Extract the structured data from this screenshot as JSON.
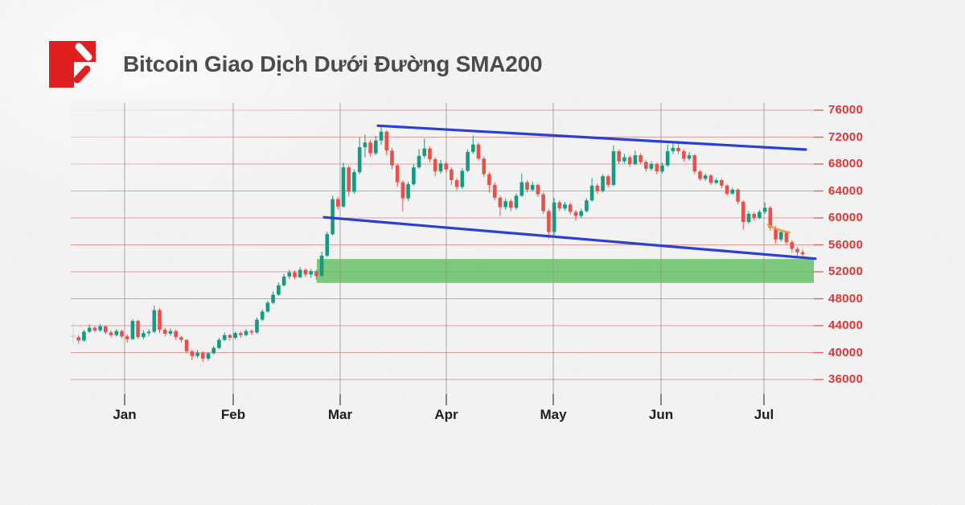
{
  "header": {
    "title": "Bitcoin Giao Dịch Dưới Đường SMA200"
  },
  "colors": {
    "background": "#f2f2f3",
    "title_text": "#4b4b4b",
    "logo_red": "#e02020",
    "candle_up": "#129b81",
    "candle_down": "#ec4f4a",
    "candle_muted": "#b9c0c5",
    "grid_red": "#d4645c",
    "month_line_gray": "#8f8f8f",
    "trendline_blue": "#2b3fd4",
    "support_zone_green": "#5fbe5d",
    "sma_orange": "#f0a03c",
    "y_label_red": "#e23434",
    "x_label_dark": "#1d1d1d"
  },
  "chart_data": {
    "type": "candlestick",
    "title": "Bitcoin Giao Dịch Dưới Đường SMA200",
    "xlabel": "",
    "ylabel": "",
    "grid": true,
    "legend_position": "none",
    "ylim": [
      36000,
      76000
    ],
    "y_ticks": [
      {
        "label": "76000",
        "value": 76000
      },
      {
        "label": "72000",
        "value": 72000
      },
      {
        "label": "68000",
        "value": 68000
      },
      {
        "label": "64000",
        "value": 64000
      },
      {
        "label": "60000",
        "value": 60000
      },
      {
        "label": "56000",
        "value": 56000
      },
      {
        "label": "52000",
        "value": 52000
      },
      {
        "label": "48000",
        "value": 48000
      },
      {
        "label": "44000",
        "value": 44000
      },
      {
        "label": "40000",
        "value": 40000
      },
      {
        "label": "36000",
        "value": 36000
      }
    ],
    "x_ticks": [
      {
        "label": "Jan",
        "x": 155
      },
      {
        "label": "Feb",
        "x": 290
      },
      {
        "label": "Mar",
        "x": 423
      },
      {
        "label": "Apr",
        "x": 555
      },
      {
        "label": "May",
        "x": 688
      },
      {
        "label": "Jun",
        "x": 822
      },
      {
        "label": "Jul",
        "x": 950
      }
    ],
    "candles_ohlc": [
      [
        42600,
        44400,
        41400,
        42300
      ],
      [
        42300,
        42600,
        41300,
        41800
      ],
      [
        41800,
        43400,
        41600,
        43100
      ],
      [
        43100,
        44200,
        42900,
        43700
      ],
      [
        43700,
        43900,
        43000,
        43300
      ],
      [
        43300,
        44300,
        43100,
        43900
      ],
      [
        43900,
        44000,
        42700,
        43000
      ],
      [
        43000,
        43300,
        42300,
        42600
      ],
      [
        42600,
        43500,
        42400,
        43200
      ],
      [
        43200,
        43400,
        42100,
        42400
      ],
      [
        42400,
        42700,
        41500,
        42000
      ],
      [
        42000,
        45000,
        41900,
        44700
      ],
      [
        44700,
        44900,
        42000,
        42300
      ],
      [
        42300,
        43300,
        42000,
        42900
      ],
      [
        42900,
        43500,
        42400,
        43100
      ],
      [
        43100,
        47000,
        42900,
        46300
      ],
      [
        46300,
        46600,
        42900,
        43400
      ],
      [
        43400,
        43700,
        42400,
        42800
      ],
      [
        42800,
        43600,
        42500,
        43200
      ],
      [
        43200,
        43400,
        41900,
        42300
      ],
      [
        42300,
        42500,
        41500,
        41900
      ],
      [
        41900,
        42000,
        39900,
        40200
      ],
      [
        40200,
        40500,
        38900,
        39500
      ],
      [
        39500,
        40400,
        39200,
        40000
      ],
      [
        40000,
        40200,
        38600,
        39100
      ],
      [
        39100,
        40100,
        38800,
        39900
      ],
      [
        39900,
        41000,
        39700,
        40700
      ],
      [
        40700,
        42200,
        40500,
        41900
      ],
      [
        41900,
        43000,
        41700,
        42600
      ],
      [
        42600,
        42800,
        41800,
        42200
      ],
      [
        42200,
        43100,
        42000,
        42900
      ],
      [
        42900,
        43200,
        42200,
        42600
      ],
      [
        42600,
        43500,
        42400,
        43200
      ],
      [
        43200,
        43400,
        42600,
        43000
      ],
      [
        43000,
        45200,
        42800,
        44900
      ],
      [
        44900,
        46400,
        44700,
        46100
      ],
      [
        46100,
        47700,
        45900,
        47400
      ],
      [
        47400,
        49100,
        47200,
        48600
      ],
      [
        48600,
        50400,
        48400,
        50000
      ],
      [
        50000,
        51700,
        49800,
        51300
      ],
      [
        51300,
        52300,
        50900,
        51900
      ],
      [
        51900,
        52200,
        50900,
        51200
      ],
      [
        51200,
        52700,
        51000,
        52300
      ],
      [
        52300,
        52500,
        51200,
        51600
      ],
      [
        51600,
        52400,
        51100,
        52100
      ],
      [
        52100,
        52300,
        50800,
        51400
      ],
      [
        51400,
        55000,
        51200,
        54400
      ],
      [
        54400,
        58000,
        54200,
        57600
      ],
      [
        57600,
        63300,
        57400,
        62800
      ],
      [
        62800,
        63100,
        61200,
        61700
      ],
      [
        61700,
        68200,
        61500,
        67500
      ],
      [
        67500,
        67800,
        63200,
        63900
      ],
      [
        63900,
        67200,
        63600,
        66800
      ],
      [
        66800,
        72000,
        66500,
        70500
      ],
      [
        70500,
        72400,
        69000,
        71200
      ],
      [
        71200,
        71600,
        69100,
        69600
      ],
      [
        69600,
        72200,
        69300,
        71500
      ],
      [
        71500,
        73700,
        70900,
        72800
      ],
      [
        72800,
        73000,
        69300,
        70000
      ],
      [
        70000,
        70400,
        67200,
        67800
      ],
      [
        67800,
        68100,
        64600,
        65300
      ],
      [
        65300,
        65600,
        61000,
        62900
      ],
      [
        62900,
        65400,
        62500,
        65000
      ],
      [
        65000,
        67900,
        64800,
        67500
      ],
      [
        67500,
        70200,
        67300,
        69200
      ],
      [
        69200,
        71800,
        68900,
        70300
      ],
      [
        70300,
        70600,
        68300,
        68700
      ],
      [
        68700,
        69000,
        66200,
        66900
      ],
      [
        66900,
        68600,
        66600,
        68100
      ],
      [
        68100,
        68400,
        66800,
        67200
      ],
      [
        67200,
        67500,
        64900,
        65600
      ],
      [
        65600,
        65900,
        64100,
        64600
      ],
      [
        64600,
        67400,
        64300,
        67000
      ],
      [
        67000,
        70200,
        66800,
        69800
      ],
      [
        69800,
        72200,
        69500,
        70900
      ],
      [
        70900,
        71200,
        68500,
        68800
      ],
      [
        68800,
        69100,
        66100,
        66500
      ],
      [
        66500,
        66800,
        63800,
        64900
      ],
      [
        64900,
        65300,
        62600,
        63000
      ],
      [
        63000,
        63300,
        60300,
        61600
      ],
      [
        61600,
        62900,
        61200,
        62500
      ],
      [
        62500,
        62800,
        61000,
        61500
      ],
      [
        61500,
        63600,
        61200,
        63300
      ],
      [
        63300,
        66600,
        63100,
        65300
      ],
      [
        65300,
        65600,
        63800,
        64200
      ],
      [
        64200,
        65400,
        63900,
        64900
      ],
      [
        64900,
        65100,
        63100,
        63500
      ],
      [
        63500,
        63800,
        60600,
        61000
      ],
      [
        61000,
        61300,
        56900,
        57900
      ],
      [
        57900,
        63000,
        57400,
        62300
      ],
      [
        62300,
        62600,
        61000,
        61400
      ],
      [
        61400,
        62400,
        61100,
        62000
      ],
      [
        62000,
        62300,
        60500,
        60900
      ],
      [
        60900,
        61200,
        59600,
        60300
      ],
      [
        60300,
        61400,
        60000,
        61000
      ],
      [
        61000,
        62900,
        60800,
        62600
      ],
      [
        62600,
        65900,
        62400,
        64800
      ],
      [
        64800,
        65100,
        63600,
        64000
      ],
      [
        64000,
        66500,
        63800,
        66200
      ],
      [
        66200,
        66400,
        64500,
        64900
      ],
      [
        64900,
        70800,
        64700,
        69900
      ],
      [
        69900,
        70200,
        68000,
        68400
      ],
      [
        68400,
        69500,
        68100,
        69000
      ],
      [
        69000,
        69300,
        67600,
        68000
      ],
      [
        68000,
        70000,
        67800,
        69300
      ],
      [
        69300,
        69600,
        68000,
        68300
      ],
      [
        68300,
        68600,
        66900,
        67300
      ],
      [
        67300,
        68400,
        67000,
        68000
      ],
      [
        68000,
        68200,
        66500,
        66900
      ],
      [
        66900,
        68200,
        66600,
        67800
      ],
      [
        67800,
        70900,
        67600,
        69900
      ],
      [
        69900,
        71200,
        69500,
        70400
      ],
      [
        70400,
        71300,
        69500,
        69900
      ],
      [
        69900,
        70200,
        68400,
        68800
      ],
      [
        68800,
        69800,
        68500,
        69300
      ],
      [
        69300,
        69500,
        66500,
        66900
      ],
      [
        66900,
        67100,
        65500,
        65800
      ],
      [
        65800,
        66600,
        65500,
        66300
      ],
      [
        66300,
        66500,
        64900,
        65200
      ],
      [
        65200,
        65900,
        65000,
        65600
      ],
      [
        65600,
        65800,
        64400,
        64800
      ],
      [
        64800,
        65000,
        63300,
        63600
      ],
      [
        63600,
        64500,
        63400,
        64200
      ],
      [
        64200,
        64400,
        62000,
        62400
      ],
      [
        62400,
        62600,
        58300,
        59400
      ],
      [
        59400,
        61000,
        59100,
        60600
      ],
      [
        60600,
        60900,
        59600,
        60000
      ],
      [
        60000,
        61200,
        59800,
        60900
      ],
      [
        60900,
        62300,
        60600,
        61500
      ],
      [
        61500,
        61800,
        58100,
        58500
      ],
      [
        58500,
        58800,
        56200,
        56800
      ],
      [
        56800,
        58200,
        56500,
        57900
      ],
      [
        57900,
        58100,
        56100,
        56400
      ],
      [
        56400,
        56700,
        54900,
        55400
      ],
      [
        55400,
        55700,
        54300,
        54900
      ],
      [
        54900,
        55300,
        54200,
        54600
      ]
    ],
    "first_candle_muted": true,
    "trendlines": [
      {
        "name": "upper-resistance-trendline",
        "from_x": 470,
        "from_price": 73700,
        "to_x": 1002,
        "to_price": 70150
      },
      {
        "name": "lower-support-trendline",
        "from_x": 403,
        "from_price": 60100,
        "to_x": 1014,
        "to_price": 53950
      }
    ],
    "support_zone": {
      "x_start": 394,
      "x_end": 1012,
      "price_top": 53900,
      "price_bottom": 50350
    },
    "sma_fragment": {
      "x": [
        955,
        962,
        969,
        976,
        982
      ],
      "price": [
        58950,
        58550,
        58250,
        58000,
        57850
      ]
    }
  }
}
